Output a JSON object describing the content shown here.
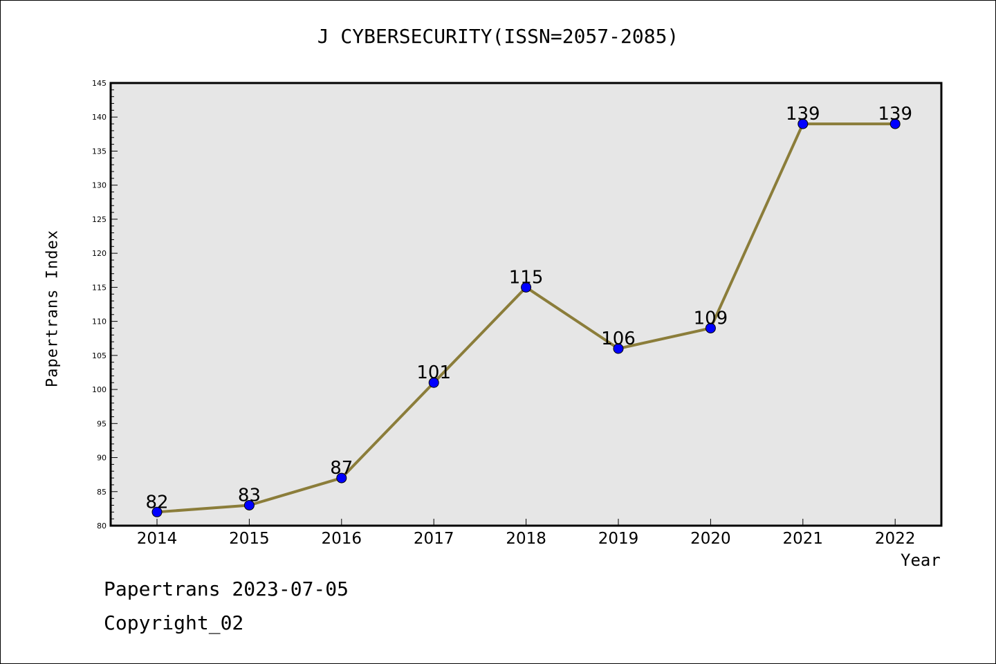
{
  "chart_data": {
    "type": "line",
    "title": "J CYBERSECURITY(ISSN=2057-2085)",
    "xlabel": "Year",
    "ylabel": "Papertrans Index",
    "x": [
      "2014",
      "2015",
      "2016",
      "2017",
      "2018",
      "2019",
      "2020",
      "2021",
      "2022"
    ],
    "values": [
      82,
      83,
      87,
      101,
      115,
      106,
      109,
      139,
      139
    ],
    "ylim": [
      80,
      145
    ],
    "yticks": [
      80,
      85,
      90,
      95,
      100,
      105,
      110,
      115,
      120,
      125,
      130,
      135,
      140,
      145
    ],
    "grid": false,
    "data_labels": true,
    "colors": {
      "line": "#8b7d3a",
      "marker": "#0000ff",
      "plot_background": "#e6e6e6"
    }
  },
  "footer": {
    "line1": "Papertrans 2023-07-05",
    "line2": "Copyright_02"
  }
}
